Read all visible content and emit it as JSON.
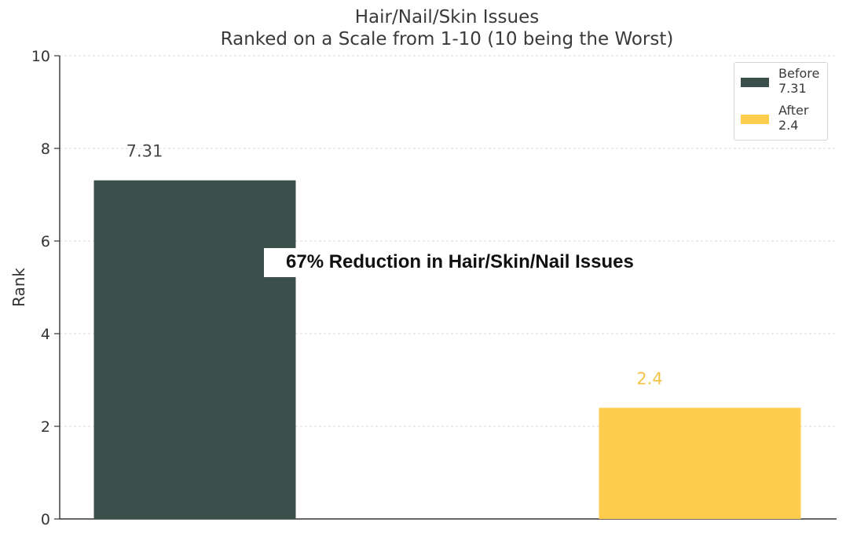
{
  "chart_data": {
    "type": "bar",
    "title": "Hair/Nail/Skin Issues",
    "subtitle": "Ranked on a Scale from 1-10 (10 being the Worst)",
    "xlabel": "",
    "ylabel": "Rank",
    "ylim": [
      0,
      10
    ],
    "yticks": [
      0,
      2,
      4,
      6,
      8,
      10
    ],
    "grid": true,
    "legend_position": "top-right",
    "categories": [
      "Before",
      "After"
    ],
    "values": [
      7.31,
      2.4
    ],
    "data_labels": [
      "7.31",
      "2.4"
    ],
    "colors": [
      "#3b4f4b",
      "#fecd4e"
    ],
    "label_colors": [
      "#4a4a4a",
      "#f4c44a"
    ],
    "legend": [
      {
        "label": "Before\n7.31",
        "color": "#3b4f4b"
      },
      {
        "label": "After\n2.4",
        "color": "#fecd4e"
      }
    ],
    "annotation": "67% Reduction in Hair/Skin/Nail Issues"
  }
}
